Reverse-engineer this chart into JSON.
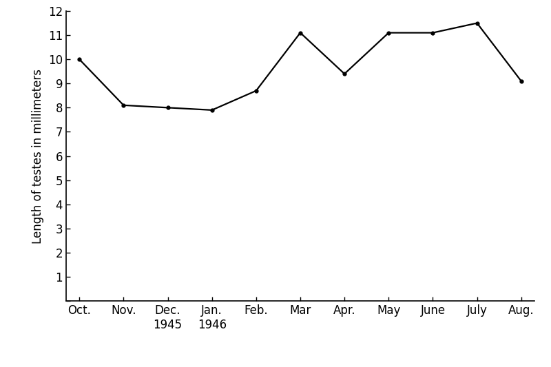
{
  "months": [
    "Oct.",
    "Nov.",
    "Dec.",
    "Jan.",
    "Feb.",
    "Mar",
    "Apr.",
    "May",
    "June",
    "July",
    "Aug."
  ],
  "values": [
    10.0,
    8.1,
    8.0,
    7.9,
    8.7,
    11.1,
    9.4,
    11.1,
    11.1,
    11.5,
    9.1
  ],
  "ylabel": "Length of testes in millimeters",
  "ylim": [
    0,
    12
  ],
  "yticks": [
    0,
    1,
    2,
    3,
    4,
    5,
    6,
    7,
    8,
    9,
    10,
    11,
    12
  ],
  "year_below": {
    "dec_idx": 2,
    "jan_idx": 3,
    "year_dec": "1945",
    "year_jan": "1946"
  },
  "line_color": "#000000",
  "marker": "o",
  "marker_size": 3.5,
  "line_width": 1.6,
  "background_color": "#ffffff",
  "fig_width": 8.0,
  "fig_height": 5.33,
  "dpi": 100,
  "tick_label_fontsize": 12,
  "ylabel_fontsize": 12
}
